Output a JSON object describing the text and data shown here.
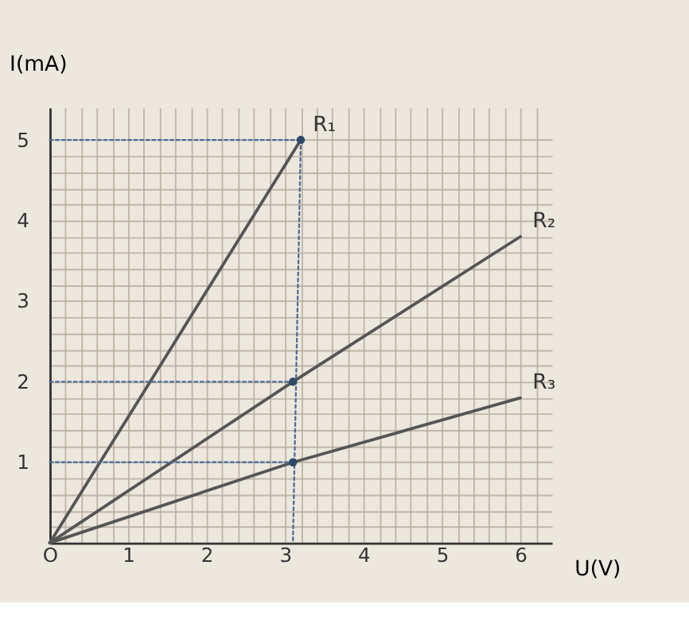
{
  "chart_data": {
    "type": "line",
    "xlabel": "U(V)",
    "ylabel": "I(mA)",
    "xlim": [
      0,
      6.4
    ],
    "ylim": [
      0,
      5.4
    ],
    "grid": true,
    "xticks": [
      {
        "value": 0,
        "label": "O"
      },
      {
        "value": 0.2,
        "label": null
      },
      {
        "value": 0.4,
        "label": null
      },
      {
        "value": 0.6,
        "label": null
      },
      {
        "value": 0.8,
        "label": null
      },
      1,
      {
        "value": 1.2,
        "label": null
      },
      {
        "value": 1.4,
        "label": null
      },
      {
        "value": 1.6,
        "label": null
      },
      {
        "value": 1.8,
        "label": null
      },
      2,
      {
        "value": 2.2,
        "label": null
      },
      {
        "value": 2.4,
        "label": null
      },
      {
        "value": 2.6,
        "label": null
      },
      {
        "value": 2.8,
        "label": null
      },
      3,
      {
        "value": 3.2,
        "label": null
      },
      {
        "value": 3.4,
        "label": null
      },
      {
        "value": 3.6,
        "label": null
      },
      {
        "value": 3.8,
        "label": null
      },
      4,
      {
        "value": 4.2,
        "label": null
      },
      {
        "value": 4.4,
        "label": null
      },
      {
        "value": 4.6,
        "label": null
      },
      {
        "value": 4.8,
        "label": null
      },
      5,
      {
        "value": 5.2,
        "label": null
      },
      {
        "value": 5.4,
        "label": null
      },
      {
        "value": 5.6,
        "label": null
      },
      {
        "value": 5.8,
        "label": null
      },
      6,
      {
        "value": 6.2,
        "label": null
      }
    ],
    "yticks": [
      {
        "value": 0,
        "label": null
      },
      {
        "value": 0.2,
        "label": null
      },
      {
        "value": 0.4,
        "label": null
      },
      {
        "value": 0.6,
        "label": null
      },
      {
        "value": 0.8,
        "label": null
      },
      1,
      {
        "value": 1.2,
        "label": null
      },
      {
        "value": 1.4,
        "label": null
      },
      {
        "value": 1.6,
        "label": null
      },
      {
        "value": 1.8,
        "label": null
      },
      2,
      {
        "value": 2.2,
        "label": null
      },
      {
        "value": 2.4,
        "label": null
      },
      {
        "value": 2.6,
        "label": null
      },
      {
        "value": 2.8,
        "label": null
      },
      3,
      {
        "value": 3.2,
        "label": null
      },
      {
        "value": 3.4,
        "label": null
      },
      {
        "value": 3.6,
        "label": null
      },
      {
        "value": 3.8,
        "label": null
      },
      4,
      {
        "value": 4.2,
        "label": null
      },
      {
        "value": 4.4,
        "label": null
      },
      {
        "value": 4.6,
        "label": null
      },
      {
        "value": 4.8,
        "label": null
      },
      5
    ],
    "series": [
      {
        "name": "R₁",
        "color": "#555555",
        "x": [
          0,
          3.2
        ],
        "values": [
          0,
          5
        ]
      },
      {
        "name": "R₂",
        "color": "#555555",
        "x": [
          0,
          3.1,
          6
        ],
        "values": [
          0,
          2,
          3.8
        ]
      },
      {
        "name": "R₃",
        "color": "#555555",
        "x": [
          0,
          3.1,
          6
        ],
        "values": [
          0,
          1,
          1.8
        ]
      },
      {
        "type": "line",
        "line_style": "dotted",
        "color": "#4a6b9a",
        "x": [
          0,
          3.2
        ],
        "values": [
          5,
          5
        ]
      },
      {
        "type": "line",
        "line_style": "dotted",
        "color": "#4a6b9a",
        "x": [
          0,
          3.1
        ],
        "values": [
          2,
          2
        ]
      },
      {
        "type": "line",
        "line_style": "dotted",
        "color": "#4a6b9a",
        "x": [
          0,
          3.1
        ],
        "values": [
          1,
          1
        ]
      },
      {
        "type": "line",
        "line_style": "dotted",
        "color": "#4a6b9a",
        "x": [
          3.2,
          3.1
        ],
        "values": [
          5,
          0
        ]
      },
      {
        "type": "scatter",
        "marker": "circle",
        "color": "#2d4a6b",
        "x": [
          3.2,
          3.1,
          3.1
        ],
        "values": [
          5,
          2,
          1
        ]
      }
    ]
  }
}
